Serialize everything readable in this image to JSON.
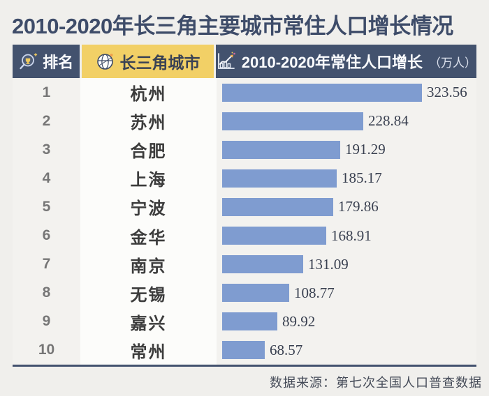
{
  "title": {
    "text": "2010-2020年长三角主要城市常住人口增长情况",
    "color": "#3e4c69"
  },
  "header": {
    "columns": [
      {
        "label": "排名",
        "icon": "magnifier-rank-icon",
        "bg": "#43526e"
      },
      {
        "label": "长三角城市",
        "icon": "globe-icon",
        "bg": "#f2d066"
      },
      {
        "label": "2010-2020年常住人口增长",
        "unit": "（万人）",
        "icon": "trend-chart-icon",
        "bg": "#43526e"
      }
    ]
  },
  "chart_data": {
    "type": "bar",
    "orientation": "horizontal",
    "title": "2010-2020年长三角主要城市常住人口增长情况",
    "xlabel": "2010-2020年常住人口增长（万人）",
    "ylabel": "长三角城市",
    "categories": [
      "杭州",
      "苏州",
      "合肥",
      "上海",
      "宁波",
      "金华",
      "南京",
      "无锡",
      "嘉兴",
      "常州"
    ],
    "ranks": [
      1,
      2,
      3,
      4,
      5,
      6,
      7,
      8,
      9,
      10
    ],
    "values": [
      323.56,
      228.84,
      191.29,
      185.17,
      179.86,
      168.91,
      131.09,
      108.77,
      89.92,
      68.57
    ],
    "xlim": [
      0,
      340
    ],
    "grid": false,
    "bar_color": "#7f9cd0",
    "value_label_position": "right-of-bar"
  },
  "footer": {
    "source": "数据来源：第七次全国人口普查数据"
  },
  "colors": {
    "page_bg": "#f0efec",
    "header_navy": "#43526e",
    "header_yellow": "#f2d066",
    "bar_blue": "#7f9cd0",
    "title_navy": "#3e4c69",
    "row_bg": "#f3f2ef",
    "city_column_bg": "#fcfcfa",
    "value_text": "#394050"
  }
}
